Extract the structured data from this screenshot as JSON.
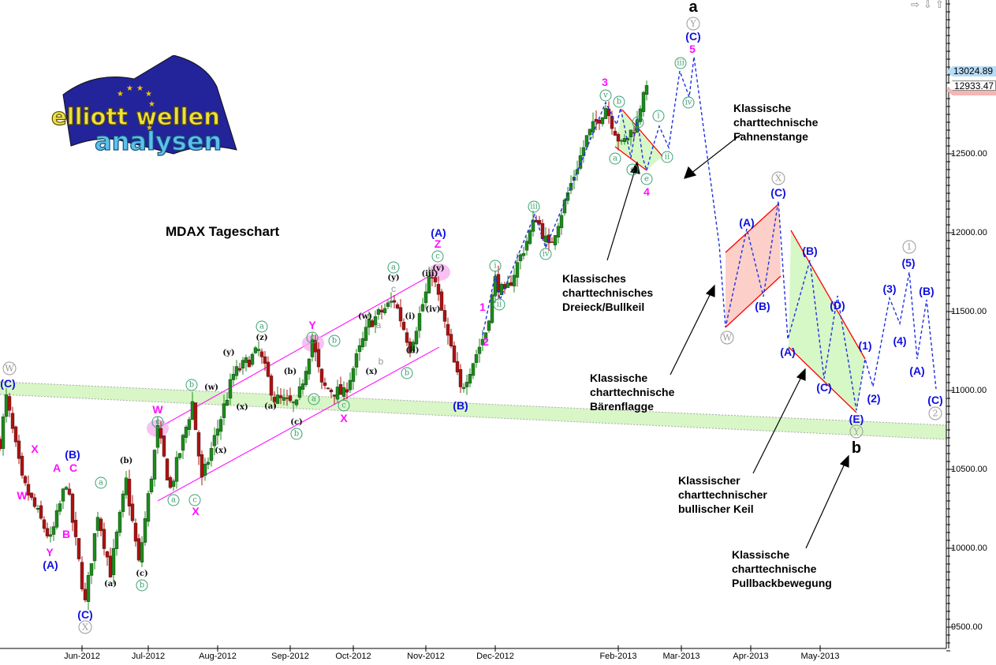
{
  "logo": {
    "line1": "elliott wellen",
    "line2": "analysen"
  },
  "title": "MDAX Tageschart",
  "annotations": [
    "Klassische\ncharttechnische\nFahnenstange",
    "Klassisches\ncharttechnisches\nDreieck/Bullkeil",
    "Klassische\ncharttechnische\nBärenflagge",
    "Klassischer\ncharttechnischer\nbullischer Keil",
    "Klassische\ncharttechnische\nPullbackbewegung"
  ],
  "price_tags": {
    "last": "13024.89",
    "second": "12933.47"
  },
  "nav_icons": [
    "arrow-right-icon",
    "arrow-down-icon",
    "arrow-up-icon"
  ],
  "colors": {
    "up": "#1a8c1a",
    "down": "#b01010",
    "wave_projection": "#2030e0",
    "channel": "#ff20ff",
    "support_band": "#d4f5c0",
    "bear_flag": "#fcd0c8",
    "wedge": "#d6f7c6"
  },
  "chart_data": {
    "type": "candlestick",
    "title": "MDAX Tageschart",
    "ylim": [
      9300,
      13600
    ],
    "yticks": [
      9500,
      10000,
      10500,
      11000,
      11500,
      12000,
      12500
    ],
    "ytick_labels": [
      "9500.00",
      "10000.00",
      "10500.00",
      "11000.00",
      "11500.00",
      "12000.00",
      "12500.00"
    ],
    "xtick_labels": [
      "Jun-2012",
      "Jul-2012",
      "Aug-2012",
      "Sep-2012",
      "Oct-2012",
      "Nov-2012",
      "Dec-2012",
      "Feb-2013",
      "Mar-2013",
      "Apr-2013",
      "May-2013"
    ],
    "grid": false,
    "price_path": [
      [
        "2012-04-26",
        10675
      ],
      [
        "2012-04-30",
        10950
      ],
      [
        "2012-05-07",
        10425
      ],
      [
        "2012-05-18",
        10050
      ],
      [
        "2012-05-25",
        10425
      ],
      [
        "2012-06-04",
        9650
      ],
      [
        "2012-06-08",
        10225
      ],
      [
        "2012-06-14",
        9850
      ],
      [
        "2012-06-21",
        10425
      ],
      [
        "2012-06-27",
        9900
      ],
      [
        "2012-07-05",
        10750
      ],
      [
        "2012-07-11",
        10375
      ],
      [
        "2012-07-20",
        10925
      ],
      [
        "2012-07-25",
        10425
      ],
      [
        "2012-08-08",
        11100
      ],
      [
        "2012-08-20",
        11250
      ],
      [
        "2012-08-27",
        10950
      ],
      [
        "2012-09-05",
        10900
      ],
      [
        "2012-09-12",
        11325
      ],
      [
        "2012-09-17",
        11025
      ],
      [
        "2012-09-26",
        10975
      ],
      [
        "2012-10-08",
        11425
      ],
      [
        "2012-10-18",
        11575
      ],
      [
        "2012-10-25",
        11275
      ],
      [
        "2012-11-05",
        11750
      ],
      [
        "2012-11-16",
        11000
      ],
      [
        "2012-11-28",
        11375
      ],
      [
        "2012-12-03",
        11700
      ],
      [
        "2012-12-06",
        11600
      ],
      [
        "2012-12-20",
        12100
      ],
      [
        "2013-01-02",
        11900
      ],
      [
        "2013-01-18",
        12600
      ],
      [
        "2013-01-28",
        12800
      ],
      [
        "2013-02-04",
        12550
      ],
      [
        "2013-02-11",
        12700
      ],
      [
        "2013-02-14",
        13025
      ]
    ],
    "last_close": 12933.47,
    "wave_labels": [
      "W",
      "(C)",
      "X",
      "W",
      "A",
      "(B)",
      "C",
      "B",
      "Y",
      "(A)",
      "(C)",
      "X",
      "a",
      "(a)",
      "(b)",
      "(c)",
      "b",
      "W",
      "c",
      "b",
      "a",
      "c",
      "X",
      "(w)",
      "(x)",
      "(y)",
      "(x)",
      "a",
      "(z)",
      "(a)",
      "(b)",
      "(c)",
      "b",
      "Y",
      "c",
      "b",
      "a",
      "c",
      "X",
      "(w)",
      "a",
      "(x)",
      "b",
      "a",
      "(y)",
      "c",
      "(i)",
      "(ii)",
      "b",
      "(iii)",
      "(v)",
      "(iv)",
      "c",
      "Z",
      "(A)",
      "(B)",
      "1",
      "2",
      "i",
      "ii",
      "iii",
      "iv",
      "3",
      "v",
      "b",
      "i",
      "a",
      "c",
      "e",
      "4",
      "i",
      "ii",
      "iii",
      "iv",
      "5",
      "(C)",
      "Y",
      "a",
      "X",
      "(C)",
      "(A)",
      "(B)",
      "W",
      "(B)",
      "(D)",
      "(A)",
      "(C)",
      "(1)",
      "(2)",
      "(3)",
      "(4)",
      "1",
      "(5)",
      "(B)",
      "(A)",
      "(C)",
      "2",
      "(E)",
      "Y",
      "b"
    ]
  }
}
